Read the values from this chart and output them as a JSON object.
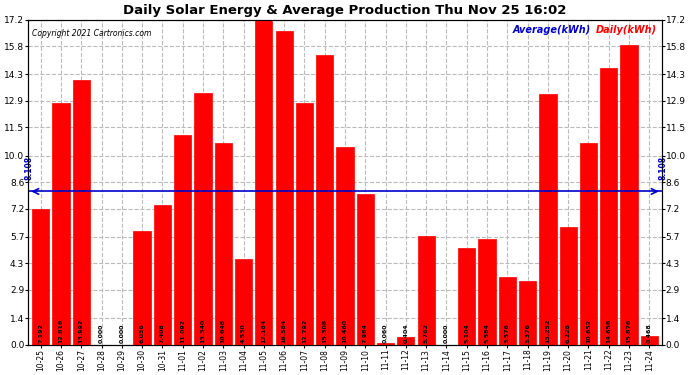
{
  "title": "Daily Solar Energy & Average Production Thu Nov 25 16:02",
  "copyright": "Copyright 2021 Cartronics.com",
  "legend_avg": "Average(kWh)",
  "legend_daily": "Daily(kWh)",
  "average_value": 8.108,
  "categories": [
    "10-25",
    "10-26",
    "10-27",
    "10-28",
    "10-29",
    "10-30",
    "10-31",
    "11-01",
    "11-02",
    "11-03",
    "11-04",
    "11-05",
    "11-06",
    "11-07",
    "11-08",
    "11-09",
    "11-10",
    "11-11",
    "11-12",
    "11-13",
    "11-14",
    "11-15",
    "11-16",
    "11-17",
    "11-18",
    "11-19",
    "11-20",
    "11-21",
    "11-22",
    "11-23",
    "11-24"
  ],
  "values": [
    7.192,
    12.816,
    13.992,
    0.0,
    0.0,
    6.036,
    7.408,
    11.092,
    13.34,
    10.648,
    4.53,
    17.184,
    16.584,
    12.792,
    15.308,
    10.46,
    7.984,
    0.06,
    0.404,
    5.762,
    0.0,
    5.104,
    5.584,
    3.576,
    3.376,
    13.252,
    6.228,
    10.652,
    14.656,
    15.876,
    0.468
  ],
  "bar_color": "#ff0000",
  "avg_line_color": "#0000cc",
  "title_color": "#000000",
  "copyright_color": "#000000",
  "legend_avg_color": "#0000cc",
  "legend_daily_color": "#ff0000",
  "ylim": [
    0.0,
    17.2
  ],
  "yticks": [
    0.0,
    1.4,
    2.9,
    4.3,
    5.7,
    7.2,
    8.6,
    10.0,
    11.5,
    12.9,
    14.3,
    15.8,
    17.2
  ],
  "grid_color": "#bbbbbb",
  "background_color": "#ffffff",
  "avg_label": "8.108"
}
